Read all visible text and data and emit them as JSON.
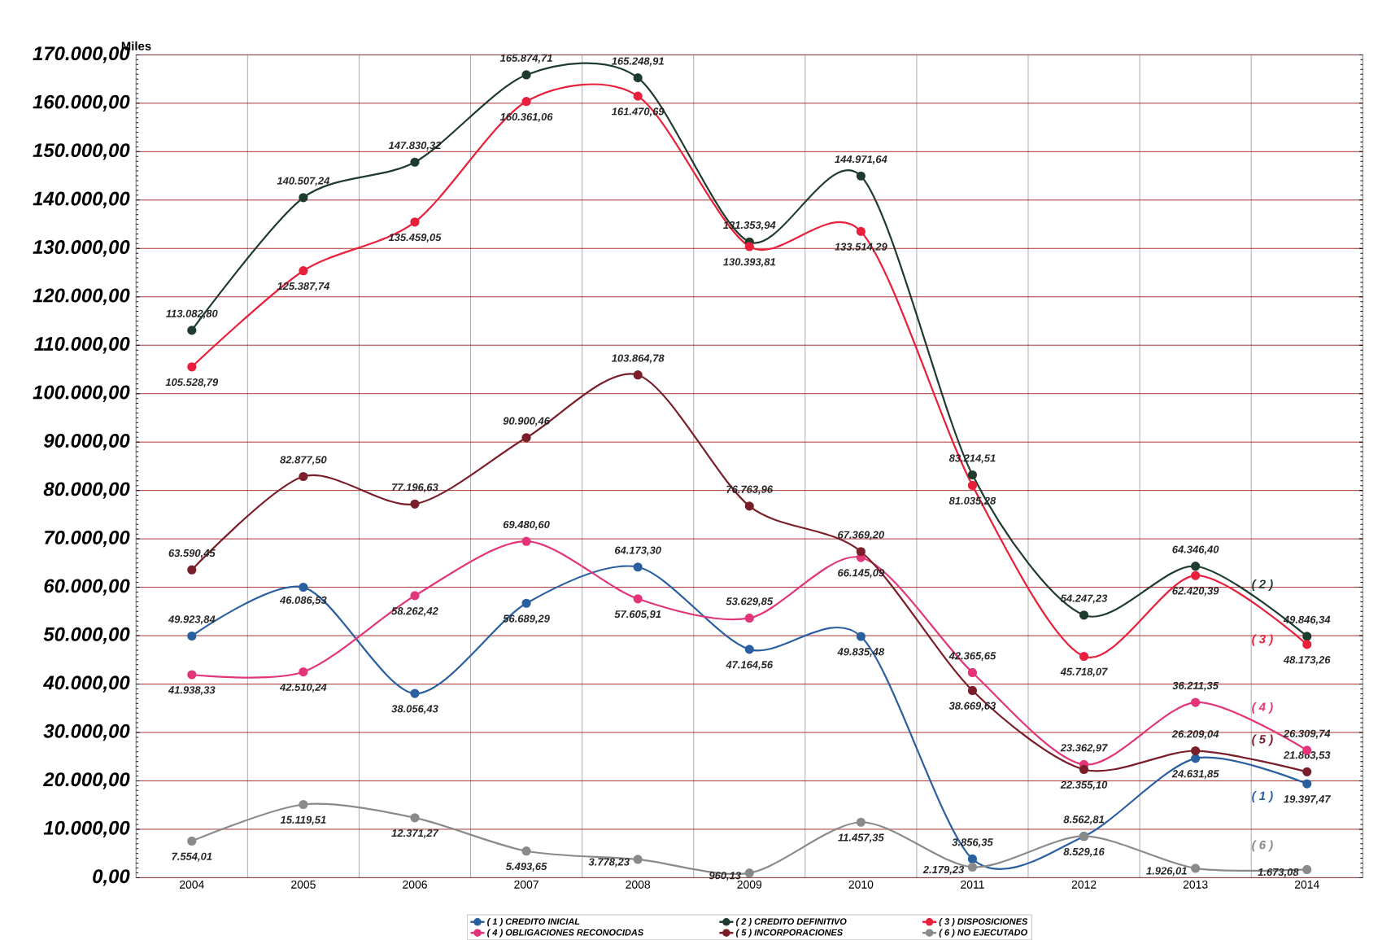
{
  "chart_data": {
    "type": "line",
    "ylabel": "Miles",
    "categories": [
      "2004",
      "2005",
      "2006",
      "2007",
      "2008",
      "2009",
      "2010",
      "2011",
      "2012",
      "2013",
      "2014"
    ],
    "series": [
      {
        "name": "( 1 ) CREDITO INICIAL",
        "color": "#2a5fa0",
        "values": [
          49923.84,
          60000,
          38056.43,
          56689.29,
          64173.3,
          47164.56,
          49835.48,
          3856.35,
          8529.16,
          24631.85,
          19397.47
        ],
        "value_labels": [
          "49.923,84",
          null,
          "38.056,43",
          "56.689,29",
          "64.173,30",
          "47.164,56",
          "49.835,48",
          "3.856,35",
          "8.529,16",
          "24.631,85",
          "19.397,47"
        ]
      },
      {
        "name": "( 2 ) CREDITO DEFINITIVO",
        "color": "#1f3b2e",
        "values": [
          113082.8,
          140507.24,
          147830.32,
          165874.71,
          165248.91,
          131353.94,
          144971.64,
          83214.51,
          54247.23,
          64346.4,
          49846.34
        ],
        "value_labels": [
          "113.082,80",
          "140.507,24",
          "147.830,32",
          "165.874,71",
          "165.248,91",
          "131.353,94",
          "144.971,64",
          "83.214,51",
          "54.247,23",
          "64.346,40",
          "49.846,34"
        ]
      },
      {
        "name": "( 3 ) DISPOSICIONES",
        "color": "#e8203c",
        "values": [
          105528.79,
          125387.74,
          135459.05,
          160361.06,
          161470.69,
          130393.81,
          133514.29,
          81035.28,
          45718.07,
          62420.39,
          48173.26
        ],
        "value_labels": [
          "105.528,79",
          "125.387,74",
          "135.459,05",
          "160.361,06",
          "161.470,69",
          "130.393,81",
          "133.514,29",
          "81.035,28",
          "45.718,07",
          "62.420,39",
          "48.173,26"
        ]
      },
      {
        "name": "( 4 ) OBLIGACIONES RECONOCIDAS",
        "color": "#e2357a",
        "values": [
          41938.33,
          42510.24,
          58262.42,
          69480.6,
          57605.91,
          53629.85,
          66145.09,
          42365.65,
          23362.97,
          36211.35,
          26309.74
        ],
        "value_labels": [
          "41.938,33",
          "42.510,24",
          "58.262,42",
          "69.480,60",
          "57.605,91",
          "53.629,85",
          "66.145,09",
          "42.365,65",
          "23.362,97",
          "36.211,35",
          "26.309,74"
        ]
      },
      {
        "name": "( 5 ) INCORPORACIONES",
        "color": "#7a1f2a",
        "values": [
          63590.45,
          82877.5,
          77196.63,
          90900.46,
          103864.78,
          76763.96,
          67369.2,
          38669.63,
          22355.1,
          26209.04,
          21863.53
        ],
        "value_labels": [
          "63.590,45",
          "82.877,50",
          "77.196,63",
          "90.900,46",
          "103.864,78",
          "76.763,96",
          "67.369,20",
          "38.669,63",
          "22.355,10",
          "26.209,04",
          "21.863,53"
        ]
      },
      {
        "name": "( 6 ) NO EJECUTADO",
        "color": "#8a8a8a",
        "values": [
          7554.01,
          15119.51,
          12371.27,
          5493.65,
          3778.23,
          960.13,
          11457.35,
          2179.23,
          8562.81,
          1926.01,
          1673.08
        ],
        "value_labels": [
          "7.554,01",
          "15.119,51",
          "12.371,27",
          "5.493,65",
          "3.778,23",
          "960,13",
          "11.457,35",
          "2.179,23",
          "8.562,81",
          "1.926,01",
          "1.673,08"
        ]
      }
    ],
    "annotations": [
      {
        "text": "46.086,53",
        "x": "2005",
        "y": 60000
      },
      "( 2 )",
      "( 3 )",
      "( 4 )",
      "( 5 )",
      "( 1 )",
      "( 6 )"
    ],
    "ylim": [
      0,
      170000
    ],
    "yticks": [
      {
        "value": 0,
        "label": "0,00"
      },
      {
        "value": 10000,
        "label": "10.000,00"
      },
      {
        "value": 20000,
        "label": "20.000,00"
      },
      {
        "value": 30000,
        "label": "30.000,00"
      },
      {
        "value": 40000,
        "label": "40.000,00"
      },
      {
        "value": 50000,
        "label": "50.000,00"
      },
      {
        "value": 60000,
        "label": "60.000,00"
      },
      {
        "value": 70000,
        "label": "70.000,00"
      },
      {
        "value": 80000,
        "label": "80.000,00"
      },
      {
        "value": 90000,
        "label": "90.000,00"
      },
      {
        "value": 100000,
        "label": "100.000,00"
      },
      {
        "value": 110000,
        "label": "110.000,00"
      },
      {
        "value": 120000,
        "label": "120.000,00"
      },
      {
        "value": 130000,
        "label": "130.000,00"
      },
      {
        "value": 140000,
        "label": "140.000,00"
      },
      {
        "value": 150000,
        "label": "150.000,00"
      },
      {
        "value": 160000,
        "label": "160.000,00"
      },
      {
        "value": 170000,
        "label": "170.000,00"
      }
    ],
    "grid": true,
    "legend": "bottom",
    "marker": "circle",
    "line_style": "solid"
  }
}
